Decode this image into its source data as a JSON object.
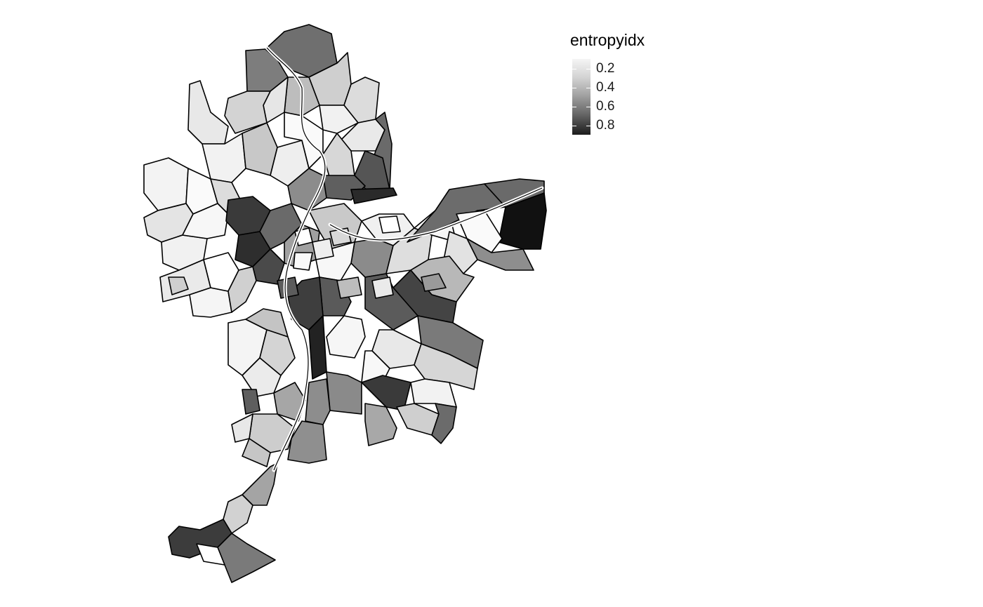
{
  "legend": {
    "title": "entropyidx",
    "ticks": [
      "0.2",
      "0.4",
      "0.6",
      "0.8"
    ],
    "tick_values": [
      0.2,
      0.4,
      0.6,
      0.8
    ],
    "color_low": "#f5f5f5",
    "color_high": "#1c1c1c"
  },
  "map": {
    "fill_scale": "greyscale",
    "border_color": "#000000",
    "river_color": "#ffffff"
  }
}
